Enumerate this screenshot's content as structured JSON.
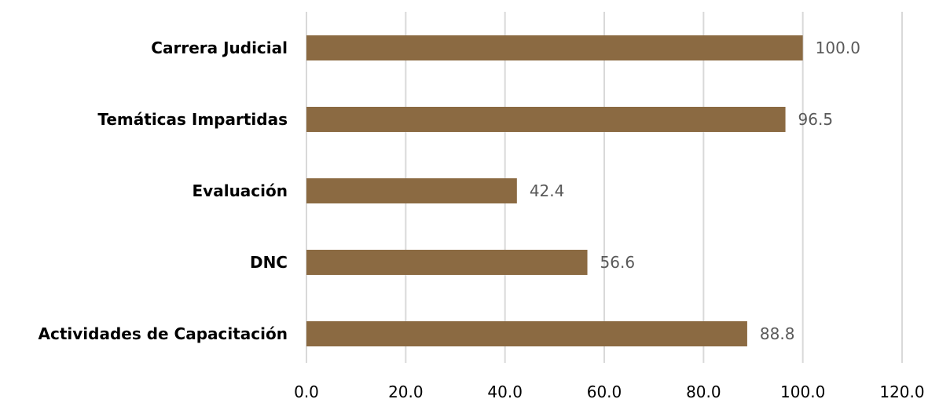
{
  "chart_data": {
    "type": "bar",
    "orientation": "horizontal",
    "categories": [
      "Carrera Judicial",
      "Temáticas Impartidas",
      "Evaluación",
      "DNC",
      "Actividades de Capacitación"
    ],
    "values": [
      100.0,
      96.5,
      42.4,
      56.6,
      88.8
    ],
    "value_labels": [
      "100.0",
      "96.5",
      "42.4",
      "56.6",
      "88.8"
    ],
    "x_ticks": [
      "0.0",
      "20.0",
      "40.0",
      "60.0",
      "80.0",
      "100.0",
      "120.0"
    ],
    "xlim": [
      0,
      120
    ],
    "grid": true,
    "legend": "none",
    "bar_color": "#8b6a42",
    "title": "",
    "xlabel": "",
    "ylabel": ""
  }
}
